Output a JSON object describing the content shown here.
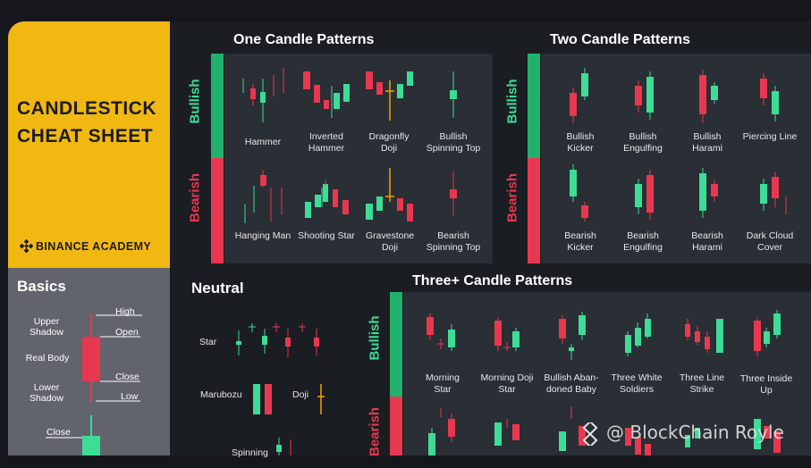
{
  "title": {
    "line1": "CANDLESTICK",
    "line2": "CHEAT SHEET"
  },
  "brand": {
    "name": "BINANCE ACADEMY",
    "icon": "binance-diamond-icon"
  },
  "basics": {
    "title": "Basics",
    "labels": {
      "upper_shadow": "Upper Shadow",
      "real_body": "Real Body",
      "lower_shadow": "Lower Shadow",
      "high": "High",
      "open": "Open",
      "close": "Close",
      "low": "Low",
      "close2": "Close"
    }
  },
  "sections": {
    "one_candle": "One Candle Patterns",
    "two_candle": "Two Candle Patterns",
    "neutral": "Neutral",
    "three_plus": "Three+ Candle Patterns"
  },
  "side_labels": {
    "bullish": "Bullish",
    "bearish": "Bearish"
  },
  "one_candle": {
    "bullish": [
      "Hammer",
      "Inverted Hammer",
      "Dragonfly Doji",
      "Bullish Spinning Top"
    ],
    "bearish": [
      "Hanging Man",
      "Shooting Star",
      "Gravestone Doji",
      "Bearish Spinning Top"
    ]
  },
  "two_candle": {
    "bullish": [
      "Bullish Kicker",
      "Bullish Engulfing",
      "Bullish Harami",
      "Piercing Line"
    ],
    "bearish": [
      "Bearish Kicker",
      "Bearish Engulfing",
      "Bearish Harami",
      "Dark Cloud Cover"
    ]
  },
  "neutral": {
    "star": "Star",
    "marubozu": "Marubozu",
    "doji": "Doji",
    "spinning": "Spinning"
  },
  "three_plus": {
    "bullish": [
      "Morning Star",
      "Morning Doji Star",
      "Bullish Aban- doned Baby",
      "Three White Soldiers",
      "Three Line Strike",
      "Three Inside Up"
    ]
  },
  "watermark": "@ BlockChain Royle",
  "colors": {
    "green": "#3ddc97",
    "red": "#e8384f",
    "yellow": "#f1b812",
    "gold": "#f0a500"
  }
}
